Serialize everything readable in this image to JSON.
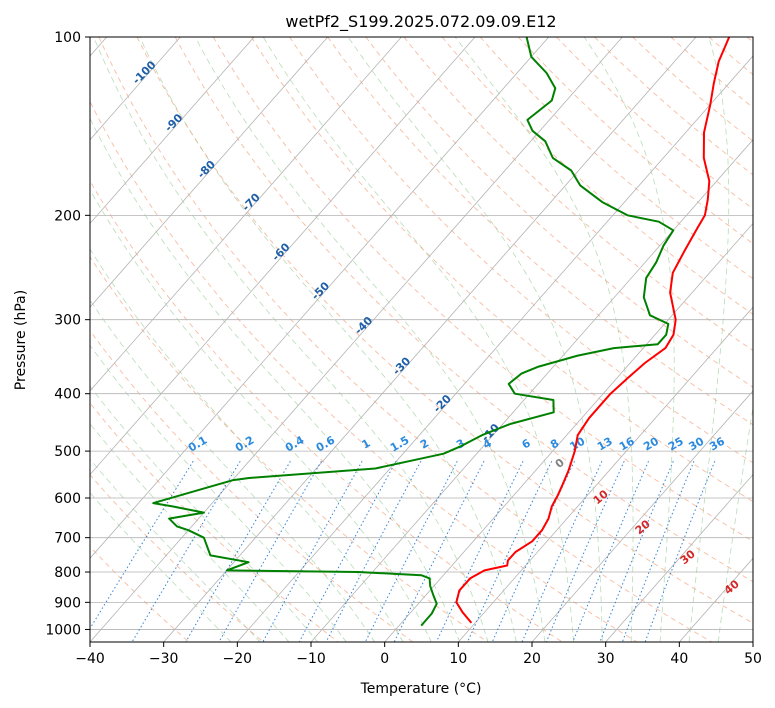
{
  "chart_data": {
    "type": "line",
    "title": "wetPf2_S199.2025.072.09.09.E12",
    "xlabel": "Temperature (°C)",
    "ylabel": "Pressure (hPa)",
    "xlim": [
      -40,
      50
    ],
    "ylim": [
      1050,
      100
    ],
    "yscale": "log",
    "x_ticks": [
      "−40",
      "−30",
      "−20",
      "−10",
      "0",
      "10",
      "20",
      "30",
      "40",
      "50"
    ],
    "y_ticks": [
      {
        "p": 100,
        "label": "100"
      },
      {
        "p": 200,
        "label": "200"
      },
      {
        "p": 300,
        "label": "300"
      },
      {
        "p": 400,
        "label": "400"
      },
      {
        "p": 500,
        "label": "500"
      },
      {
        "p": 600,
        "label": "600"
      },
      {
        "p": 700,
        "label": "700"
      },
      {
        "p": 800,
        "label": "800"
      },
      {
        "p": 900,
        "label": "900"
      },
      {
        "p": 1000,
        "label": "1000"
      }
    ],
    "grid": true,
    "skew_x": true,
    "dry_adiabat_labels": [
      {
        "text": "-100",
        "t": -100,
        "p": 116
      },
      {
        "text": "-90",
        "t": -90,
        "p": 141
      },
      {
        "text": "-80",
        "t": -80,
        "p": 169
      },
      {
        "text": "-70",
        "t": -70,
        "p": 192
      },
      {
        "text": "-60",
        "t": -60,
        "p": 233
      },
      {
        "text": "-50",
        "t": -50,
        "p": 271
      },
      {
        "text": "-40",
        "t": -40,
        "p": 310
      },
      {
        "text": "-30",
        "t": -30,
        "p": 363
      },
      {
        "text": "-20",
        "t": -20,
        "p": 420
      },
      {
        "text": "-10",
        "t": -10,
        "p": 470
      }
    ],
    "mixing_ratio_labels": [
      "0.1",
      "0.2",
      "0.4",
      "0.6",
      "1",
      "1.5",
      "2",
      "3",
      "4",
      "6",
      "8",
      "10",
      "13",
      "16",
      "20",
      "25",
      "30",
      "36"
    ],
    "moist_adiabat_labels": [
      {
        "text": "0",
        "color": "#808080"
      },
      {
        "text": "10",
        "color": "#d62728"
      },
      {
        "text": "20",
        "color": "#d62728"
      },
      {
        "text": "30",
        "color": "#d62728"
      },
      {
        "text": "40",
        "color": "#d62728"
      }
    ],
    "series": [
      {
        "role": "temperature",
        "color": "#ff0000",
        "points": [
          [
            9.5,
            975
          ],
          [
            7.0,
            935
          ],
          [
            5.0,
            900
          ],
          [
            4.0,
            860
          ],
          [
            4.0,
            820
          ],
          [
            5.0,
            795
          ],
          [
            7.5,
            780
          ],
          [
            7.0,
            765
          ],
          [
            7.0,
            740
          ],
          [
            8.0,
            710
          ],
          [
            8.0,
            680
          ],
          [
            7.5,
            650
          ],
          [
            6.5,
            620
          ],
          [
            6.0,
            595
          ],
          [
            5.5,
            575
          ],
          [
            4.5,
            540
          ],
          [
            3.0,
            500
          ],
          [
            1.5,
            470
          ],
          [
            1.0,
            440
          ],
          [
            1.0,
            400
          ],
          [
            1.5,
            375
          ],
          [
            2.0,
            355
          ],
          [
            3.0,
            335
          ],
          [
            2.5,
            318
          ],
          [
            1.0,
            300
          ],
          [
            -3.0,
            270
          ],
          [
            -5.0,
            250
          ],
          [
            -6.0,
            230
          ],
          [
            -7.0,
            210
          ],
          [
            -7.5,
            200
          ],
          [
            -9.0,
            188
          ],
          [
            -11.0,
            175
          ],
          [
            -14.5,
            160
          ],
          [
            -17.5,
            145
          ],
          [
            -20.0,
            130
          ],
          [
            -22.0,
            120
          ],
          [
            -24.0,
            110
          ],
          [
            -25.5,
            100
          ]
        ]
      },
      {
        "role": "dewpoint",
        "color": "#008000",
        "points": [
          [
            3.0,
            985
          ],
          [
            3.0,
            940
          ],
          [
            2.5,
            905
          ],
          [
            1.0,
            875
          ],
          [
            -0.5,
            845
          ],
          [
            -1.5,
            820
          ],
          [
            -3.0,
            810
          ],
          [
            -12.0,
            800
          ],
          [
            -30.0,
            795
          ],
          [
            -28.0,
            770
          ],
          [
            -34.0,
            750
          ],
          [
            -37.0,
            700
          ],
          [
            -40.0,
            680
          ],
          [
            -42.0,
            670
          ],
          [
            -44.0,
            650
          ],
          [
            -40.0,
            635
          ],
          [
            -45.0,
            620
          ],
          [
            -48.0,
            612
          ],
          [
            -40.0,
            560
          ],
          [
            -38.0,
            555
          ],
          [
            -22.0,
            535
          ],
          [
            -14.5,
            505
          ],
          [
            -13.0,
            490
          ],
          [
            -11.5,
            470
          ],
          [
            -9.0,
            450
          ],
          [
            -4.5,
            430
          ],
          [
            -6.0,
            410
          ],
          [
            -12.0,
            400
          ],
          [
            -14.0,
            385
          ],
          [
            -13.5,
            370
          ],
          [
            -12.0,
            360
          ],
          [
            -8.0,
            345
          ],
          [
            -4.0,
            335
          ],
          [
            1.5,
            330
          ],
          [
            1.5,
            318
          ],
          [
            0.5,
            305
          ],
          [
            -3.0,
            295
          ],
          [
            -6.0,
            275
          ],
          [
            -8.0,
            255
          ],
          [
            -8.5,
            240
          ],
          [
            -9.5,
            225
          ],
          [
            -10.0,
            212
          ],
          [
            -13.0,
            205
          ],
          [
            -18.0,
            200
          ],
          [
            -23.0,
            190
          ],
          [
            -28.0,
            178
          ],
          [
            -31.0,
            168
          ],
          [
            -35.0,
            160
          ],
          [
            -38.0,
            150
          ],
          [
            -41.0,
            144
          ],
          [
            -43.0,
            138
          ],
          [
            -42.0,
            128
          ],
          [
            -43.0,
            122
          ],
          [
            -46.0,
            115
          ],
          [
            -50.0,
            108
          ],
          [
            -53.0,
            100
          ]
        ]
      }
    ]
  }
}
